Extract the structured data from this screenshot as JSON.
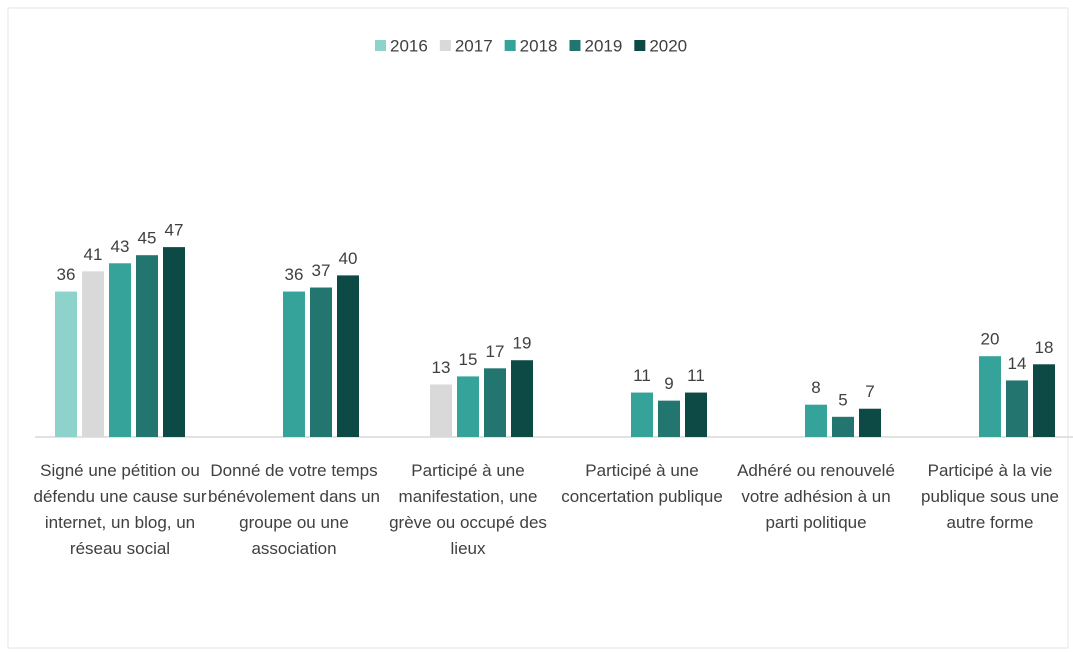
{
  "chart_data": {
    "type": "bar",
    "categories": [
      "Signé une pétition ou défendu une cause sur internet, un blog, un réseau social",
      "Donné de votre temps bénévolement dans un groupe ou une association",
      "Participé à une manifestation, une grève ou occupé des lieux",
      "Participé à une concertation publique",
      "Adhéré ou renouvelé votre adhésion à un parti politique",
      "Participé à la vie publique sous une autre forme"
    ],
    "series": [
      {
        "name": "2016",
        "color": "#8dd3cb",
        "values": [
          36,
          null,
          null,
          null,
          null,
          null
        ]
      },
      {
        "name": "2017",
        "color": "#d9d9d9",
        "values": [
          41,
          null,
          13,
          null,
          null,
          null
        ]
      },
      {
        "name": "2018",
        "color": "#36a39a",
        "values": [
          43,
          36,
          15,
          11,
          8,
          20
        ]
      },
      {
        "name": "2019",
        "color": "#23756f",
        "values": [
          45,
          37,
          17,
          9,
          5,
          14
        ]
      },
      {
        "name": "2020",
        "color": "#0e4a45",
        "values": [
          47,
          40,
          19,
          11,
          7,
          18
        ]
      }
    ],
    "legend": "top"
  }
}
